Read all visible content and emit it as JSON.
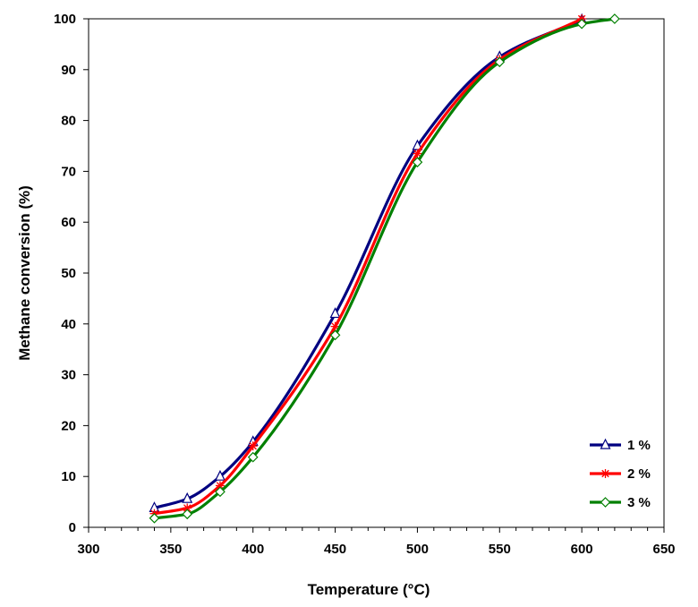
{
  "chart_data": {
    "type": "line",
    "xlabel": "Temperature (°C)",
    "ylabel": "Methane conversion (%)",
    "xlim": [
      300,
      650
    ],
    "ylim": [
      0,
      100
    ],
    "xticks": [
      300,
      350,
      400,
      450,
      500,
      550,
      600,
      650
    ],
    "yticks": [
      0,
      10,
      20,
      30,
      40,
      50,
      60,
      70,
      80,
      90,
      100
    ],
    "xminor_step": 10,
    "grid": false,
    "legend_position": "bottom-right",
    "series": [
      {
        "name": "1 %",
        "color": "#000080",
        "marker": "triangle",
        "x": [
          340,
          360,
          380,
          400,
          450,
          500,
          550,
          600
        ],
        "y": [
          3.8,
          5.6,
          10.0,
          16.8,
          42.0,
          75.0,
          92.5,
          99.8
        ]
      },
      {
        "name": "2 %",
        "color": "#ff0000",
        "marker": "asterisk",
        "x": [
          340,
          360,
          380,
          400,
          450,
          500,
          550,
          600
        ],
        "y": [
          2.7,
          3.8,
          8.2,
          16.0,
          39.5,
          73.5,
          92.0,
          100.0
        ]
      },
      {
        "name": "3 %",
        "color": "#008000",
        "marker": "diamond",
        "x": [
          340,
          360,
          380,
          400,
          450,
          500,
          550,
          600,
          620
        ],
        "y": [
          1.8,
          2.6,
          7.0,
          13.8,
          37.8,
          71.8,
          91.5,
          99.0,
          100.0
        ]
      }
    ]
  }
}
